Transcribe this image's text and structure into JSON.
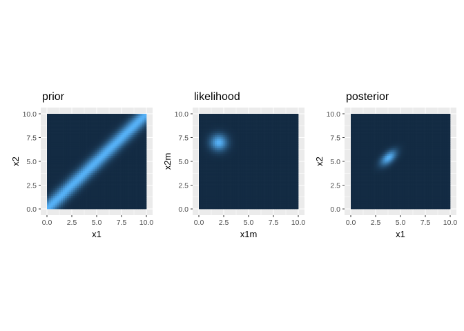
{
  "colors": {
    "panel_background": "#ebebeb",
    "gridline": "#ffffff",
    "density_low": "#132b43",
    "density_high": "#56b1f7",
    "tick_text": "#4d4d4d",
    "tick_mark": "#333333"
  },
  "chart_data": [
    {
      "type": "heatmap",
      "title": "prior",
      "xlabel": "x1",
      "ylabel": "x2",
      "xlim": [
        0,
        10
      ],
      "ylim": [
        0,
        10
      ],
      "x_ticks": [
        "0.0",
        "2.5",
        "5.0",
        "7.5",
        "10.0"
      ],
      "y_ticks": [
        "0.0",
        "2.5",
        "5.0",
        "7.5",
        "10.0"
      ],
      "grid": true,
      "legend": "none",
      "density": {
        "shape": "ridge along x2 = x1",
        "ridge_slope": 1,
        "ridge_intercept": 0,
        "sd": 0.5
      }
    },
    {
      "type": "heatmap",
      "title": "likelihood",
      "xlabel": "x1m",
      "ylabel": "x2m",
      "xlim": [
        0,
        10
      ],
      "ylim": [
        0,
        10
      ],
      "x_ticks": [
        "0.0",
        "2.5",
        "5.0",
        "7.5",
        "10.0"
      ],
      "y_ticks": [
        "0.0",
        "2.5",
        "5.0",
        "7.5",
        "10.0"
      ],
      "grid": true,
      "legend": "none",
      "density": {
        "shape": "gaussian peak",
        "mean": [
          2,
          7
        ],
        "sd": [
          0.6,
          0.6
        ],
        "rho": 0
      }
    },
    {
      "type": "heatmap",
      "title": "posterior",
      "xlabel": "x1",
      "ylabel": "x2",
      "xlim": [
        0,
        10
      ],
      "ylim": [
        0,
        10
      ],
      "x_ticks": [
        "0.0",
        "2.5",
        "5.0",
        "7.5",
        "10.0"
      ],
      "y_ticks": [
        "0.0",
        "2.5",
        "5.0",
        "7.5",
        "10.0"
      ],
      "grid": true,
      "legend": "none",
      "density": {
        "shape": "gaussian peak",
        "mean": [
          3.8,
          5.4
        ],
        "sd": [
          0.55,
          0.55
        ],
        "rho": 0.55
      }
    }
  ]
}
